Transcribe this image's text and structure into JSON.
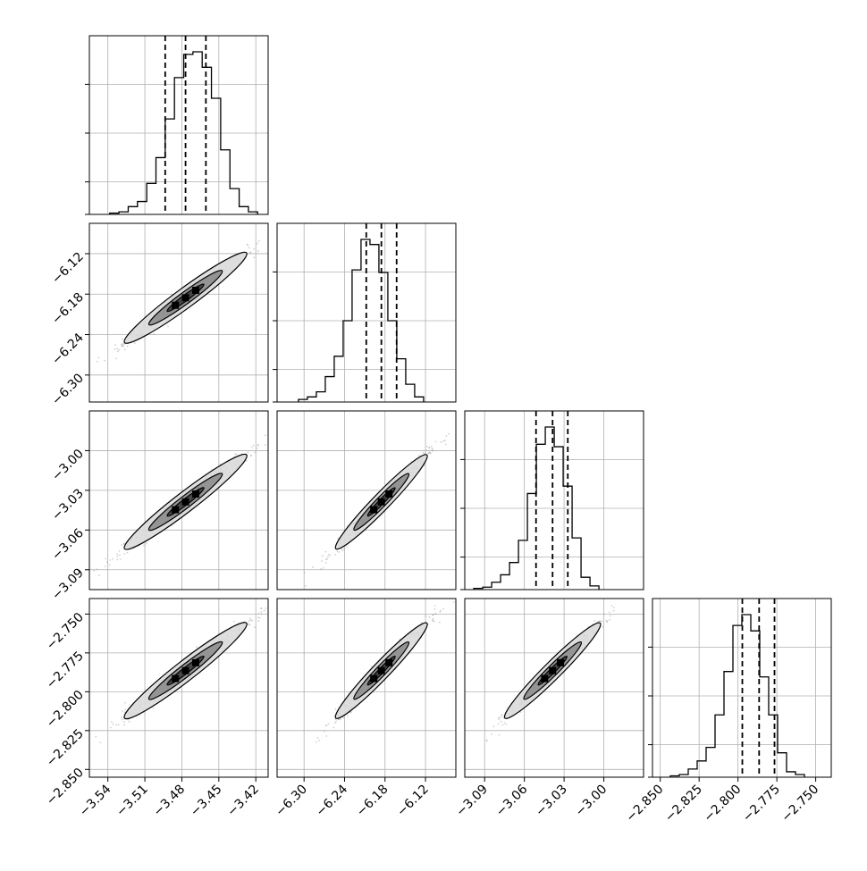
{
  "chart_data": {
    "type": "corner",
    "title": "",
    "grid": true,
    "parameters": [
      {
        "range": [
          -3.555,
          -3.41
        ],
        "ticks": [
          "-3.54",
          "-3.51",
          "-3.48",
          "-3.45",
          "-3.42"
        ],
        "tick_values": [
          -3.54,
          -3.51,
          -3.48,
          -3.45,
          -3.42
        ],
        "quantiles": [
          -3.4935,
          -3.477,
          -3.4605
        ],
        "histogram": {
          "start": -3.5385,
          "bin_width": 0.0075,
          "counts": [
            0.5,
            1,
            3,
            5,
            12,
            22,
            37,
            53,
            62,
            63,
            57,
            45,
            25,
            10,
            3,
            1
          ]
        }
      },
      {
        "range": [
          -6.34,
          -6.075
        ],
        "ticks": [
          "-6.30",
          "-6.24",
          "-6.18",
          "-6.12"
        ],
        "tick_values": [
          -6.3,
          -6.24,
          -6.18,
          -6.12
        ],
        "quantiles": [
          -6.2078,
          -6.1854,
          -6.1628
        ],
        "histogram": {
          "start": -6.3083,
          "bin_width": 0.01325,
          "counts": [
            1,
            2,
            4,
            10,
            18,
            32,
            52,
            64,
            62,
            51,
            32,
            17,
            7,
            2
          ]
        }
      },
      {
        "range": [
          -3.105,
          -2.97
        ],
        "ticks": [
          "-3.09",
          "-3.06",
          "-3.03",
          "-3.00"
        ],
        "tick_values": [
          -3.09,
          -3.06,
          -3.03,
          -3.0
        ],
        "quantiles": [
          -3.0512,
          -3.0387,
          -3.0272
        ],
        "histogram": {
          "start": -3.0982,
          "bin_width": 0.00675,
          "counts": [
            0.5,
            1,
            3,
            6,
            11,
            20,
            39,
            59,
            66,
            58,
            42,
            21,
            5,
            1.5
          ]
        }
      },
      {
        "range": [
          -2.855,
          -2.74
        ],
        "ticks": [
          "-2.850",
          "-2.825",
          "-2.800",
          "-2.775",
          "-2.750"
        ],
        "tick_values": [
          -2.85,
          -2.825,
          -2.8,
          -2.775,
          -2.75
        ],
        "quantiles": [
          -2.7972,
          -2.7864,
          -2.7765
        ],
        "histogram": {
          "start": -2.8435,
          "bin_width": 0.00575,
          "counts": [
            0.5,
            1,
            3,
            6,
            11,
            23,
            39,
            56,
            60,
            54,
            37,
            23,
            9,
            2,
            1
          ]
        }
      }
    ],
    "colors": {
      "line": "#000000",
      "grid": "#b0b0b0",
      "scatter": "#9a9a9a",
      "contour_light": "#dcdcdc",
      "contour_mid": "#8c8c8c",
      "contour_dark": "#404040",
      "core": "#000000"
    }
  }
}
